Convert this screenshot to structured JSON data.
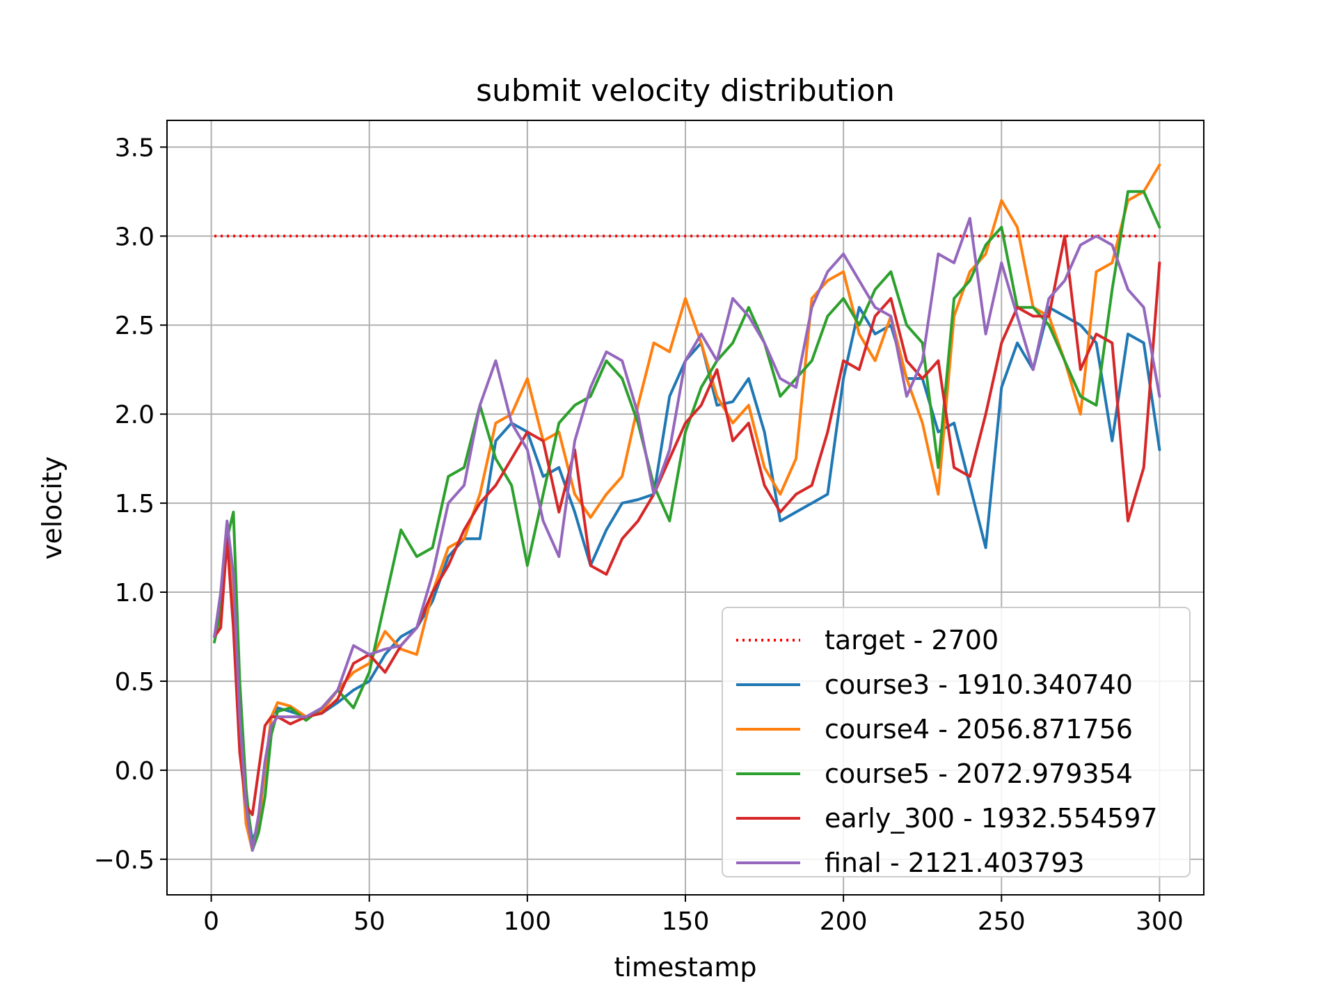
{
  "chart_data": {
    "type": "line",
    "title": "submit velocity distribution",
    "xlabel": "timestamp",
    "ylabel": "velocity",
    "xlim": [
      -14,
      314
    ],
    "ylim": [
      -0.7,
      3.65
    ],
    "xticks": [
      0,
      50,
      100,
      150,
      200,
      250,
      300
    ],
    "xtick_labels": [
      "0",
      "50",
      "100",
      "150",
      "200",
      "250",
      "300"
    ],
    "yticks": [
      -0.5,
      0.0,
      0.5,
      1.0,
      1.5,
      2.0,
      2.5,
      3.0,
      3.5
    ],
    "ytick_labels": [
      "−0.5",
      "0.0",
      "0.5",
      "1.0",
      "1.5",
      "2.0",
      "2.5",
      "3.0",
      "3.5"
    ],
    "grid": true,
    "legend_position": "lower-right",
    "series": [
      {
        "name": "target - 2700",
        "color": "#ff0000",
        "style": "dotted",
        "x": [
          1,
          300
        ],
        "y": [
          3.0,
          3.0
        ]
      },
      {
        "name": "course3 - 1910.340740",
        "color": "#1f77b4",
        "style": "solid",
        "x": [
          1,
          3,
          5,
          7,
          9,
          11,
          13,
          15,
          17,
          19,
          21,
          25,
          30,
          35,
          40,
          45,
          50,
          55,
          60,
          65,
          70,
          75,
          80,
          85,
          90,
          95,
          100,
          105,
          110,
          115,
          120,
          125,
          130,
          135,
          140,
          145,
          150,
          155,
          160,
          165,
          170,
          175,
          180,
          185,
          190,
          195,
          200,
          205,
          210,
          215,
          220,
          225,
          230,
          235,
          240,
          245,
          250,
          255,
          260,
          265,
          270,
          275,
          280,
          285,
          290,
          295,
          300
        ],
        "y": [
          0.75,
          0.85,
          1.3,
          1.0,
          0.3,
          -0.15,
          -0.4,
          -0.3,
          0.0,
          0.3,
          0.35,
          0.33,
          0.3,
          0.32,
          0.38,
          0.45,
          0.5,
          0.65,
          0.75,
          0.8,
          0.95,
          1.2,
          1.3,
          1.3,
          1.85,
          1.95,
          1.9,
          1.65,
          1.7,
          1.45,
          1.15,
          1.35,
          1.5,
          1.52,
          1.55,
          2.1,
          2.3,
          2.4,
          2.05,
          2.07,
          2.2,
          1.9,
          1.4,
          1.45,
          1.5,
          1.55,
          2.2,
          2.6,
          2.45,
          2.5,
          2.2,
          2.2,
          1.9,
          1.95,
          1.6,
          1.25,
          2.15,
          2.4,
          2.25,
          2.6,
          2.55,
          2.5,
          2.4,
          1.85,
          2.45,
          2.4,
          1.8
        ]
      },
      {
        "name": "course4 - 2056.871756",
        "color": "#ff7f0e",
        "style": "solid",
        "x": [
          1,
          3,
          5,
          7,
          9,
          11,
          13,
          15,
          17,
          19,
          21,
          25,
          30,
          35,
          40,
          45,
          50,
          55,
          60,
          65,
          70,
          75,
          80,
          85,
          90,
          95,
          100,
          105,
          110,
          115,
          120,
          125,
          130,
          135,
          140,
          145,
          150,
          155,
          160,
          165,
          170,
          175,
          180,
          185,
          190,
          195,
          200,
          205,
          210,
          215,
          220,
          225,
          230,
          235,
          240,
          245,
          250,
          255,
          260,
          265,
          270,
          275,
          280,
          285,
          290,
          295,
          300
        ],
        "y": [
          0.75,
          0.85,
          1.35,
          1.0,
          0.2,
          -0.3,
          -0.45,
          -0.3,
          0.0,
          0.3,
          0.38,
          0.36,
          0.3,
          0.33,
          0.45,
          0.55,
          0.6,
          0.78,
          0.68,
          0.65,
          1.0,
          1.25,
          1.3,
          1.55,
          1.95,
          2.0,
          2.2,
          1.85,
          1.9,
          1.55,
          1.42,
          1.55,
          1.65,
          2.05,
          2.4,
          2.35,
          2.65,
          2.4,
          2.1,
          1.95,
          2.05,
          1.7,
          1.55,
          1.75,
          2.65,
          2.75,
          2.8,
          2.45,
          2.3,
          2.55,
          2.2,
          1.95,
          1.55,
          2.55,
          2.8,
          2.9,
          3.2,
          3.05,
          2.6,
          2.55,
          2.3,
          2.0,
          2.8,
          2.85,
          3.2,
          3.25,
          3.4
        ]
      },
      {
        "name": "course5 - 2072.979354",
        "color": "#2ca02c",
        "style": "solid",
        "x": [
          1,
          3,
          5,
          7,
          9,
          11,
          13,
          15,
          17,
          19,
          21,
          25,
          30,
          35,
          40,
          45,
          50,
          55,
          60,
          65,
          70,
          75,
          80,
          85,
          90,
          95,
          100,
          105,
          110,
          115,
          120,
          125,
          130,
          135,
          140,
          145,
          150,
          155,
          160,
          165,
          170,
          175,
          180,
          185,
          190,
          195,
          200,
          205,
          210,
          215,
          220,
          225,
          230,
          235,
          240,
          245,
          250,
          255,
          260,
          265,
          270,
          275,
          280,
          285,
          290,
          295,
          300
        ],
        "y": [
          0.72,
          0.9,
          1.3,
          1.45,
          0.5,
          -0.1,
          -0.45,
          -0.35,
          -0.15,
          0.2,
          0.33,
          0.35,
          0.28,
          0.35,
          0.45,
          0.35,
          0.55,
          0.95,
          1.35,
          1.2,
          1.25,
          1.65,
          1.7,
          2.05,
          1.75,
          1.6,
          1.15,
          1.55,
          1.95,
          2.05,
          2.1,
          2.3,
          2.2,
          1.95,
          1.6,
          1.4,
          1.9,
          2.15,
          2.3,
          2.4,
          2.6,
          2.4,
          2.1,
          2.2,
          2.3,
          2.55,
          2.65,
          2.5,
          2.7,
          2.8,
          2.5,
          2.4,
          1.7,
          2.65,
          2.75,
          2.95,
          3.05,
          2.6,
          2.6,
          2.5,
          2.3,
          2.1,
          2.05,
          2.7,
          3.25,
          3.25,
          3.05
        ]
      },
      {
        "name": "early_300 - 1932.554597",
        "color": "#d62728",
        "style": "solid",
        "x": [
          1,
          3,
          5,
          7,
          9,
          11,
          13,
          15,
          17,
          19,
          21,
          25,
          30,
          35,
          40,
          45,
          50,
          55,
          60,
          65,
          70,
          75,
          80,
          85,
          90,
          95,
          100,
          105,
          110,
          115,
          120,
          125,
          130,
          135,
          140,
          145,
          150,
          155,
          160,
          165,
          170,
          175,
          180,
          185,
          190,
          195,
          200,
          205,
          210,
          215,
          220,
          225,
          230,
          235,
          240,
          245,
          250,
          255,
          260,
          265,
          270,
          275,
          280,
          285,
          290,
          295,
          300
        ],
        "y": [
          0.75,
          0.8,
          1.3,
          0.8,
          0.1,
          -0.2,
          -0.25,
          0.0,
          0.25,
          0.3,
          0.3,
          0.26,
          0.3,
          0.32,
          0.4,
          0.6,
          0.65,
          0.55,
          0.7,
          0.8,
          1.0,
          1.15,
          1.35,
          1.5,
          1.6,
          1.75,
          1.9,
          1.85,
          1.45,
          1.8,
          1.15,
          1.1,
          1.3,
          1.4,
          1.55,
          1.75,
          1.95,
          2.05,
          2.25,
          1.85,
          1.95,
          1.6,
          1.45,
          1.55,
          1.6,
          1.9,
          2.3,
          2.25,
          2.55,
          2.65,
          2.3,
          2.2,
          2.3,
          1.7,
          1.65,
          2.0,
          2.4,
          2.6,
          2.55,
          2.55,
          3.0,
          2.25,
          2.45,
          2.4,
          1.4,
          1.7,
          2.85
        ]
      },
      {
        "name": "final - 2121.403793",
        "color": "#9467bd",
        "style": "solid",
        "x": [
          1,
          3,
          5,
          7,
          9,
          11,
          13,
          15,
          17,
          19,
          21,
          25,
          30,
          35,
          40,
          45,
          50,
          55,
          60,
          65,
          70,
          75,
          80,
          85,
          90,
          95,
          100,
          105,
          110,
          115,
          120,
          125,
          130,
          135,
          140,
          145,
          150,
          155,
          160,
          165,
          170,
          175,
          180,
          185,
          190,
          195,
          200,
          205,
          210,
          215,
          220,
          225,
          230,
          235,
          240,
          245,
          250,
          255,
          260,
          265,
          270,
          275,
          280,
          285,
          290,
          295,
          300
        ],
        "y": [
          0.75,
          1.0,
          1.4,
          1.1,
          0.3,
          -0.2,
          -0.45,
          -0.25,
          0.05,
          0.25,
          0.3,
          0.3,
          0.3,
          0.35,
          0.45,
          0.7,
          0.65,
          0.68,
          0.7,
          0.8,
          1.1,
          1.5,
          1.6,
          2.05,
          2.3,
          1.95,
          1.8,
          1.4,
          1.2,
          1.85,
          2.15,
          2.35,
          2.3,
          2.0,
          1.55,
          1.8,
          2.3,
          2.45,
          2.3,
          2.65,
          2.55,
          2.4,
          2.2,
          2.15,
          2.6,
          2.8,
          2.9,
          2.75,
          2.6,
          2.55,
          2.1,
          2.3,
          2.9,
          2.85,
          3.1,
          2.45,
          2.85,
          2.55,
          2.25,
          2.65,
          2.75,
          2.95,
          3.0,
          2.95,
          2.7,
          2.6,
          2.1
        ]
      }
    ]
  }
}
